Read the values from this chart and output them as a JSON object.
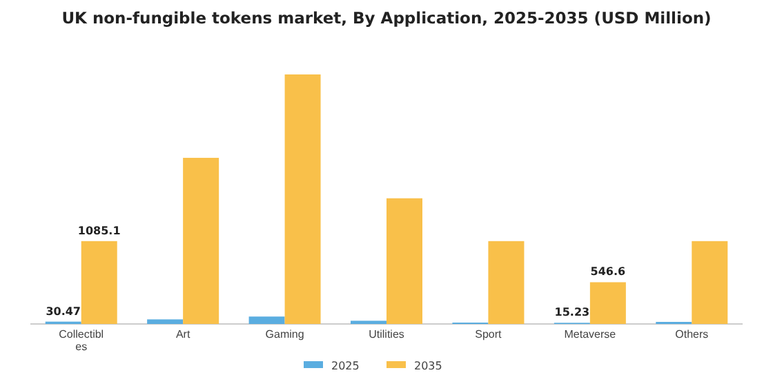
{
  "chart_data": {
    "type": "bar",
    "title": "UK non-fungible tokens market, By Application, 2025-2035 (USD Million)",
    "categories": [
      "Collectibles",
      "Art",
      "Gaming",
      "Utilities",
      "Sport",
      "Metaverse",
      "Others"
    ],
    "series": [
      {
        "name": "2025",
        "color": "#5aade0",
        "values": [
          30.47,
          60,
          97,
          42,
          18,
          15.23,
          27
        ],
        "value_labels": [
          "30.47",
          null,
          null,
          null,
          null,
          "15.23",
          null
        ]
      },
      {
        "name": "2035",
        "color": "#f9c04a",
        "values": [
          1085.1,
          2176,
          3268,
          1646,
          1085,
          546.6,
          1085
        ],
        "value_labels": [
          "1085.1",
          null,
          null,
          null,
          null,
          "546.6",
          null
        ]
      }
    ],
    "legend": "bottom",
    "tick_labels": "x"
  }
}
